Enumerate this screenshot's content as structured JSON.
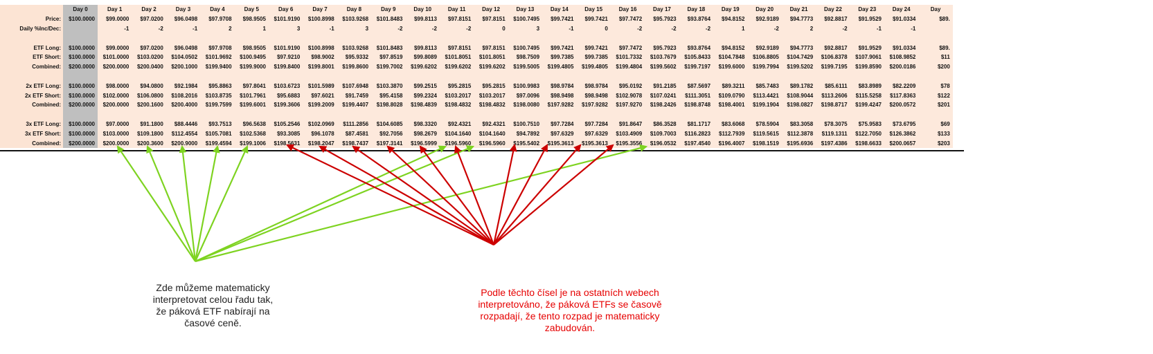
{
  "sheet": {
    "days": [
      "Day 0",
      "Day 1",
      "Day 2",
      "Day 3",
      "Day 4",
      "Day 5",
      "Day 6",
      "Day 7",
      "Day 8",
      "Day 9",
      "Day 10",
      "Day 11",
      "Day 12",
      "Day 13",
      "Day 14",
      "Day 15",
      "Day 16",
      "Day 17",
      "Day 18",
      "Day 19",
      "Day 20",
      "Day 21",
      "Day 22",
      "Day 23",
      "Day 24",
      "Day"
    ],
    "rows": [
      {
        "label": "Price:",
        "cells": [
          "$100.0000",
          "$99.0000",
          "$97.0200",
          "$96.0498",
          "$97.9708",
          "$98.9505",
          "$101.9190",
          "$100.8998",
          "$103.9268",
          "$101.8483",
          "$99.8113",
          "$97.8151",
          "$97.8151",
          "$100.7495",
          "$99.7421",
          "$99.7421",
          "$97.7472",
          "$95.7923",
          "$93.8764",
          "$94.8152",
          "$92.9189",
          "$94.7773",
          "$92.8817",
          "$91.9529",
          "$91.0334",
          "$89."
        ]
      },
      {
        "label": "Daily %Inc/Dec:",
        "cells": [
          "",
          "-1",
          "-2",
          "-1",
          "2",
          "1",
          "3",
          "-1",
          "3",
          "-2",
          "-2",
          "-2",
          "0",
          "3",
          "-1",
          "0",
          "-2",
          "-2",
          "-2",
          "1",
          "-2",
          "2",
          "-2",
          "-1",
          "-1",
          ""
        ]
      },
      {
        "label": "",
        "cells": []
      },
      {
        "label": "ETF Long:",
        "cells": [
          "$100.0000",
          "$99.0000",
          "$97.0200",
          "$96.0498",
          "$97.9708",
          "$98.9505",
          "$101.9190",
          "$100.8998",
          "$103.9268",
          "$101.8483",
          "$99.8113",
          "$97.8151",
          "$97.8151",
          "$100.7495",
          "$99.7421",
          "$99.7421",
          "$97.7472",
          "$95.7923",
          "$93.8764",
          "$94.8152",
          "$92.9189",
          "$94.7773",
          "$92.8817",
          "$91.9529",
          "$91.0334",
          "$89."
        ]
      },
      {
        "label": "ETF Short:",
        "cells": [
          "$100.0000",
          "$101.0000",
          "$103.0200",
          "$104.0502",
          "$101.9692",
          "$100.9495",
          "$97.9210",
          "$98.9002",
          "$95.9332",
          "$97.8519",
          "$99.8089",
          "$101.8051",
          "$101.8051",
          "$98.7509",
          "$99.7385",
          "$99.7385",
          "$101.7332",
          "$103.7679",
          "$105.8433",
          "$104.7848",
          "$106.8805",
          "$104.7429",
          "$106.8378",
          "$107.9061",
          "$108.9852",
          "$11"
        ]
      },
      {
        "label": "Combined:",
        "cells": [
          "$200.0000",
          "$200.0000",
          "$200.0400",
          "$200.1000",
          "$199.9400",
          "$199.9000",
          "$199.8400",
          "$199.8001",
          "$199.8600",
          "$199.7002",
          "$199.6202",
          "$199.6202",
          "$199.6202",
          "$199.5005",
          "$199.4805",
          "$199.4805",
          "$199.4804",
          "$199.5602",
          "$199.7197",
          "$199.6000",
          "$199.7994",
          "$199.5202",
          "$199.7195",
          "$199.8590",
          "$200.0186",
          "$200"
        ]
      },
      {
        "label": "",
        "cells": []
      },
      {
        "label": "2x ETF Long:",
        "cells": [
          "$100.0000",
          "$98.0000",
          "$94.0800",
          "$92.1984",
          "$95.8863",
          "$97.8041",
          "$103.6723",
          "$101.5989",
          "$107.6948",
          "$103.3870",
          "$99.2515",
          "$95.2815",
          "$95.2815",
          "$100.9983",
          "$98.9784",
          "$98.9784",
          "$95.0192",
          "$91.2185",
          "$87.5697",
          "$89.3211",
          "$85.7483",
          "$89.1782",
          "$85.6111",
          "$83.8989",
          "$82.2209",
          "$78"
        ]
      },
      {
        "label": "2x ETF Short:",
        "cells": [
          "$100.0000",
          "$102.0000",
          "$106.0800",
          "$108.2016",
          "$103.8735",
          "$101.7961",
          "$95.6883",
          "$97.6021",
          "$91.7459",
          "$95.4158",
          "$99.2324",
          "$103.2017",
          "$103.2017",
          "$97.0096",
          "$98.9498",
          "$98.9498",
          "$102.9078",
          "$107.0241",
          "$111.3051",
          "$109.0790",
          "$113.4421",
          "$108.9044",
          "$113.2606",
          "$115.5258",
          "$117.8363",
          "$122"
        ]
      },
      {
        "label": "Combined:",
        "cells": [
          "$200.0000",
          "$200.0000",
          "$200.1600",
          "$200.4000",
          "$199.7599",
          "$199.6001",
          "$199.3606",
          "$199.2009",
          "$199.4407",
          "$198.8028",
          "$198.4839",
          "$198.4832",
          "$198.4832",
          "$198.0080",
          "$197.9282",
          "$197.9282",
          "$197.9270",
          "$198.2426",
          "$198.8748",
          "$198.4001",
          "$199.1904",
          "$198.0827",
          "$198.8717",
          "$199.4247",
          "$200.0572",
          "$201"
        ]
      },
      {
        "label": "",
        "cells": []
      },
      {
        "label": "3x ETF Long:",
        "cells": [
          "$100.0000",
          "$97.0000",
          "$91.1800",
          "$88.4446",
          "$93.7513",
          "$96.5638",
          "$105.2546",
          "$102.0969",
          "$111.2856",
          "$104.6085",
          "$98.3320",
          "$92.4321",
          "$92.4321",
          "$100.7510",
          "$97.7284",
          "$97.7284",
          "$91.8647",
          "$86.3528",
          "$81.1717",
          "$83.6068",
          "$78.5904",
          "$83.3058",
          "$78.3075",
          "$75.9583",
          "$73.6795",
          "$69"
        ]
      },
      {
        "label": "3x ETF Short:",
        "cells": [
          "$100.0000",
          "$103.0000",
          "$109.1800",
          "$112.4554",
          "$105.7081",
          "$102.5368",
          "$93.3085",
          "$96.1078",
          "$87.4581",
          "$92.7056",
          "$98.2679",
          "$104.1640",
          "$104.1640",
          "$94.7892",
          "$97.6329",
          "$97.6329",
          "$103.4909",
          "$109.7003",
          "$116.2823",
          "$112.7939",
          "$119.5615",
          "$112.3878",
          "$119.1311",
          "$122.7050",
          "$126.3862",
          "$133"
        ]
      },
      {
        "label": "Combined:",
        "cells": [
          "$200.0000",
          "$200.0000",
          "$200.3600",
          "$200.9000",
          "$199.4594",
          "$199.1006",
          "$198.5631",
          "$198.2047",
          "$198.7437",
          "$197.3141",
          "$196.5999",
          "$196.5960",
          "$196.5960",
          "$195.5402",
          "$195.3613",
          "$195.3613",
          "$195.3556",
          "$196.0532",
          "$197.4540",
          "$196.4007",
          "$198.1519",
          "$195.6936",
          "$197.4386",
          "$198.6633",
          "$200.0657",
          "$203"
        ]
      }
    ]
  },
  "annotations": {
    "green_text": "Zde můžeme matematicky interpretovat celou řadu tak, že páková ETF nabírají na časové ceně.",
    "red_text": "Podle těchto čísel je na ostatních webech interpretováno, že páková ETFs se časově rozpadají, že tento rozpad je matematicky zabudován.",
    "green_color": "#7ed321",
    "red_color": "#cc0000"
  }
}
